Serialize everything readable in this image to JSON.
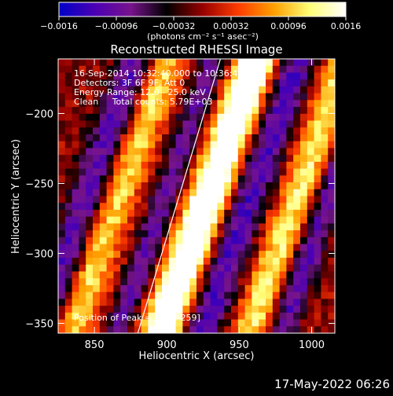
{
  "chart_data": {
    "type": "heatmap",
    "title": "Reconstructed RHESSI Image",
    "xlabel": "Heliocentric X (arcsec)",
    "ylabel": "Heliocentric Y (arcsec)",
    "xlim": [
      825,
      1016
    ],
    "ylim": [
      -357,
      -161
    ],
    "x_ticks": [
      850,
      900,
      950,
      1000
    ],
    "y_ticks": [
      -200,
      -250,
      -300,
      -350
    ],
    "x_tick_labels": [
      "850",
      "900",
      "950",
      "1000"
    ],
    "y_tick_labels": [
      "−200",
      "−250",
      "−300",
      "−350"
    ],
    "colorbar": {
      "min": -0.0016,
      "max": 0.0016,
      "ticks": [
        -0.0016,
        -0.00096,
        -0.00032,
        0.00032,
        0.00096,
        0.0016
      ],
      "tick_labels": [
        "−0.0016",
        "−0.00096",
        "−0.00032",
        "0.00032",
        "0.00096",
        "0.0016"
      ],
      "units_label": "(photons cm⁻² s⁻¹ asec⁻²)",
      "colors": [
        "#0000c8",
        "#4b00b4",
        "#78148c",
        "#000000",
        "#960000",
        "#ff3c00",
        "#ffa000",
        "#ffff78",
        "#ffffff"
      ]
    },
    "info_lines": [
      "16-Sep-2014 10:32:40.000 to 10:36:40.000",
      "Detectors: 3F 6F 9F, Att 0",
      "Energy Range: 12.0 - 25.0 keV",
      "Clean     Total counts: 5.79E+03"
    ],
    "peak_label": "Position of Peak = [928,-259]",
    "limb_line": [
      [
        880,
        -357
      ],
      [
        937,
        -161
      ]
    ],
    "image_grid": {
      "nx": 40,
      "ny": 40,
      "bands": [
        {
          "x0": 870,
          "y0": -250,
          "slope": 0.34,
          "width": 9,
          "amp": 0.0011
        },
        {
          "x0": 928,
          "y0": -259,
          "slope": 0.34,
          "width": 11,
          "amp": 0.0016
        },
        {
          "x0": 990,
          "y0": -259,
          "slope": 0.34,
          "width": 9,
          "amp": 0.0012
        },
        {
          "x0": 960,
          "y0": -170,
          "slope": 0.34,
          "width": 7,
          "amp": 0.0009
        }
      ],
      "negative_bands": [
        {
          "x0": 845,
          "y0": -259,
          "slope": 0.34,
          "width": 9,
          "amp": -0.0011
        },
        {
          "x0": 900,
          "y0": -259,
          "slope": 0.34,
          "width": 7,
          "amp": -0.001
        },
        {
          "x0": 958,
          "y0": -259,
          "slope": 0.34,
          "width": 9,
          "amp": -0.0012
        },
        {
          "x0": 1012,
          "y0": -259,
          "slope": 0.34,
          "width": 7,
          "amp": -0.0011
        }
      ]
    }
  },
  "footer_timestamp": "17-May-2022 06:26"
}
